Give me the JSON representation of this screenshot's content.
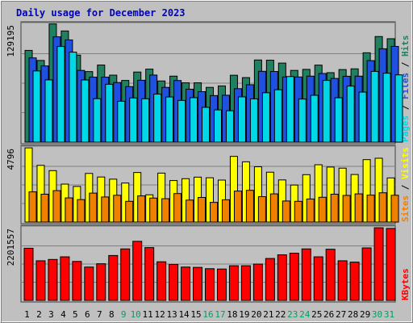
{
  "chart_data": {
    "type": "bar",
    "title": "Daily usage for December 2023",
    "days": [
      "1",
      "2",
      "3",
      "4",
      "5",
      "6",
      "7",
      "8",
      "9",
      "10",
      "11",
      "12",
      "13",
      "14",
      "15",
      "16",
      "17",
      "18",
      "19",
      "20",
      "21",
      "22",
      "23",
      "24",
      "25",
      "26",
      "27",
      "28",
      "29",
      "30",
      "31"
    ],
    "weekend_days": [
      "9",
      "10",
      "16",
      "17",
      "23",
      "24",
      "30",
      "31"
    ],
    "panels": [
      {
        "id": "hits",
        "ymax_label": "129195",
        "ymax": 129195,
        "legend": [
          {
            "label": "Pages",
            "color": "#00d8e8"
          },
          {
            "label": "Files",
            "color": "#2050e0"
          },
          {
            "label": "Hits",
            "color": "#208060"
          }
        ],
        "series": [
          {
            "name": "Hits",
            "color": "#208060",
            "values": [
              100500,
              89500,
              129500,
              121800,
              95300,
              77300,
              84500,
              73400,
              67600,
              76800,
              80000,
              67000,
              72300,
              65000,
              65000,
              60000,
              61600,
              73300,
              70700,
              90000,
              89800,
              86600,
              78600,
              79700,
              84400,
              76100,
              79500,
              80300,
              97900,
              115700,
              113300
            ]
          },
          {
            "name": "Files",
            "color": "#2050e0",
            "values": [
              92300,
              83500,
              115400,
              112000,
              78600,
              71200,
              71200,
              65300,
              60800,
              67800,
              73500,
              60000,
              67500,
              58000,
              55300,
              51000,
              51400,
              58600,
              62900,
              77600,
              77400,
              71400,
              71400,
              72300,
              75200,
              69800,
              72200,
              72300,
              89300,
              102300,
              104900
            ]
          },
          {
            "name": "Pages",
            "color": "#00d8e8",
            "values": [
              78000,
              68200,
              104800,
              98600,
              68100,
              47600,
              63400,
              44800,
              48400,
              47500,
              52600,
              49500,
              45700,
              48700,
              38100,
              35300,
              34400,
              49600,
              47400,
              54100,
              57400,
              71900,
              47200,
              51300,
              67600,
              48600,
              61400,
              54800,
              77500,
              75500,
              73700
            ]
          }
        ]
      },
      {
        "id": "visits",
        "ymax_label": "4796",
        "ymax": 4796,
        "legend": [
          {
            "label": "Sites",
            "color": "#f08000"
          },
          {
            "label": "Visits",
            "color": "#ffff00"
          }
        ],
        "series": [
          {
            "name": "Visits",
            "color": "#ffff00",
            "values": [
              4790,
              3660,
              3320,
              2450,
              2300,
              3140,
              2910,
              2770,
              2520,
              3200,
              1760,
              3160,
              2680,
              2800,
              2900,
              2860,
              2710,
              4240,
              3890,
              3570,
              3220,
              2720,
              2390,
              3060,
              3700,
              3550,
              3480,
              3070,
              4030,
              4120,
              2850
            ]
          },
          {
            "name": "Sites",
            "color": "#f08000",
            "values": [
              1950,
              1800,
              2030,
              1560,
              1450,
              1870,
              1620,
              1730,
              1340,
              1690,
              1550,
              1510,
              1840,
              1420,
              1590,
              1270,
              1440,
              2000,
              2050,
              1640,
              1820,
              1360,
              1340,
              1490,
              1600,
              1800,
              1720,
              1820,
              1740,
              1890,
              1730
            ]
          }
        ]
      },
      {
        "id": "kbytes",
        "ymax_label": "2201557",
        "ymax": 2201557,
        "legend": [
          {
            "label": "KBytes",
            "color": "#ff0000"
          }
        ],
        "series": [
          {
            "name": "KBytes",
            "color": "#ff0000",
            "values": [
              1580000,
              1200000,
              1240000,
              1320000,
              1180000,
              1010000,
              1110000,
              1360000,
              1560000,
              1790000,
              1600000,
              1170000,
              1090000,
              1010000,
              1000000,
              960000,
              950000,
              1050000,
              1050000,
              1100000,
              1270000,
              1380000,
              1430000,
              1560000,
              1320000,
              1550000,
              1200000,
              1160000,
              1590000,
              2200000,
              2180000
            ]
          }
        ]
      }
    ]
  }
}
